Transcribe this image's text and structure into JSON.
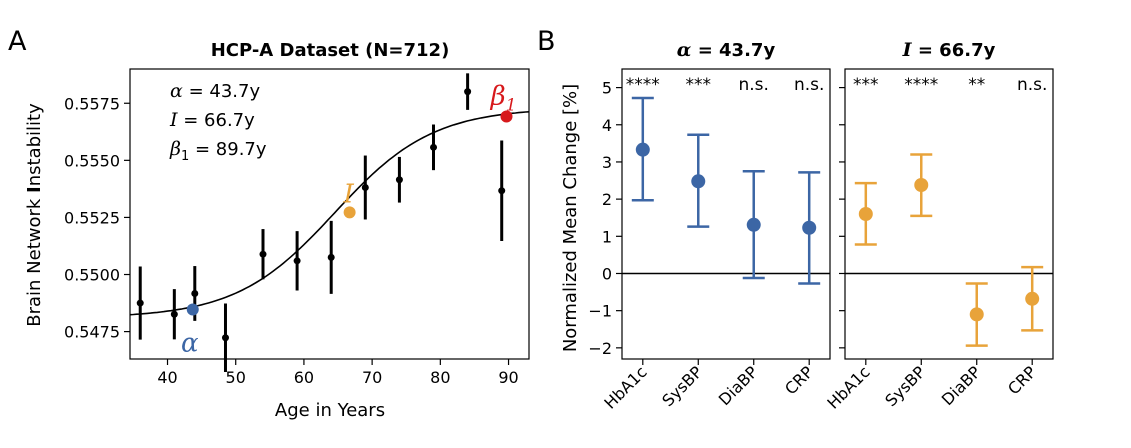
{
  "colors": {
    "alpha": "#3c66a5",
    "inflection": "#e8a33a",
    "beta": "#d7191c",
    "data": "#000000"
  },
  "chart_data": [
    {
      "panel_label": "A",
      "type": "scatter",
      "title": "HCP-A Dataset (N=712)",
      "xlabel": "Age in Years",
      "ylabel_pre": "Brain Network ",
      "ylabel_i": "I",
      "ylabel_post": "nstability",
      "xlim": [
        34.5,
        93
      ],
      "ylim": [
        0.5463,
        0.559
      ],
      "xticks": [
        40,
        50,
        60,
        70,
        80,
        90
      ],
      "yticks": [
        0.5475,
        0.55,
        0.5525,
        0.555,
        0.5575
      ],
      "ytick_labels": [
        "0.5475",
        "0.5500",
        "0.5525",
        "0.5550",
        "0.5575"
      ],
      "points": [
        {
          "x": 36,
          "y": 0.54875,
          "err": 0.0016
        },
        {
          "x": 41,
          "y": 0.54826,
          "err": 0.0011
        },
        {
          "x": 44,
          "y": 0.54917,
          "err": 0.0012
        },
        {
          "x": 48.5,
          "y": 0.54723,
          "err": 0.0015
        },
        {
          "x": 54,
          "y": 0.55089,
          "err": 0.0011
        },
        {
          "x": 59,
          "y": 0.5506,
          "err": 0.0013
        },
        {
          "x": 64,
          "y": 0.55075,
          "err": 0.0016
        },
        {
          "x": 69,
          "y": 0.55381,
          "err": 0.0014
        },
        {
          "x": 74,
          "y": 0.55415,
          "err": 0.001
        },
        {
          "x": 79,
          "y": 0.55557,
          "err": 0.001
        },
        {
          "x": 84,
          "y": 0.55801,
          "err": 0.0008
        },
        {
          "x": 89,
          "y": 0.55367,
          "err": 0.0022
        }
      ],
      "sigmoid": {
        "low": 0.5481,
        "high": 0.5573,
        "center": 64.5,
        "scale": 7.2
      },
      "markers": [
        {
          "key": "alpha",
          "x": 43.7,
          "y": 0.54847,
          "label": "α"
        },
        {
          "key": "inflection",
          "x": 66.7,
          "y": 0.55272,
          "label": "I"
        },
        {
          "key": "beta",
          "x": 89.7,
          "y": 0.55692,
          "label": "β",
          "sub": "1"
        }
      ],
      "annotations": [
        {
          "sym": "α",
          "text": " = 43.7y"
        },
        {
          "sym": "I",
          "text": " = 66.7y"
        },
        {
          "sym": "β",
          "sub": "1",
          "text": " = 89.7y"
        }
      ]
    },
    {
      "panel_label": "B",
      "type": "scatter",
      "ylabel": "Normalized Mean Change [%]",
      "ylim": [
        -2.3,
        5.5
      ],
      "yticks": [
        -2,
        -1,
        0,
        1,
        2,
        3,
        4,
        5
      ],
      "ytick_labels": [
        "−2",
        "−1",
        "0",
        "1",
        "2",
        "3",
        "4",
        "5"
      ],
      "categories": [
        "HbA1c",
        "SysBP",
        "DiaBP",
        "CRP"
      ],
      "panels": [
        {
          "title_sym": "α",
          "title_text": " = 43.7y",
          "color_key": "alpha",
          "values": [
            3.33,
            2.48,
            1.31,
            1.23
          ],
          "lower": [
            1.97,
            1.26,
            -0.12,
            -0.27
          ],
          "upper": [
            4.72,
            3.73,
            2.75,
            2.72
          ],
          "sig": [
            "****",
            "***",
            "n.s.",
            "n.s."
          ]
        },
        {
          "title_sym": "I",
          "title_text": " = 66.7y",
          "color_key": "inflection",
          "values": [
            1.6,
            2.38,
            -1.1,
            -0.68
          ],
          "lower": [
            0.78,
            1.55,
            -1.94,
            -1.53
          ],
          "upper": [
            2.43,
            3.2,
            -0.27,
            0.17
          ],
          "sig": [
            "***",
            "****",
            "**",
            "n.s."
          ]
        }
      ]
    }
  ]
}
